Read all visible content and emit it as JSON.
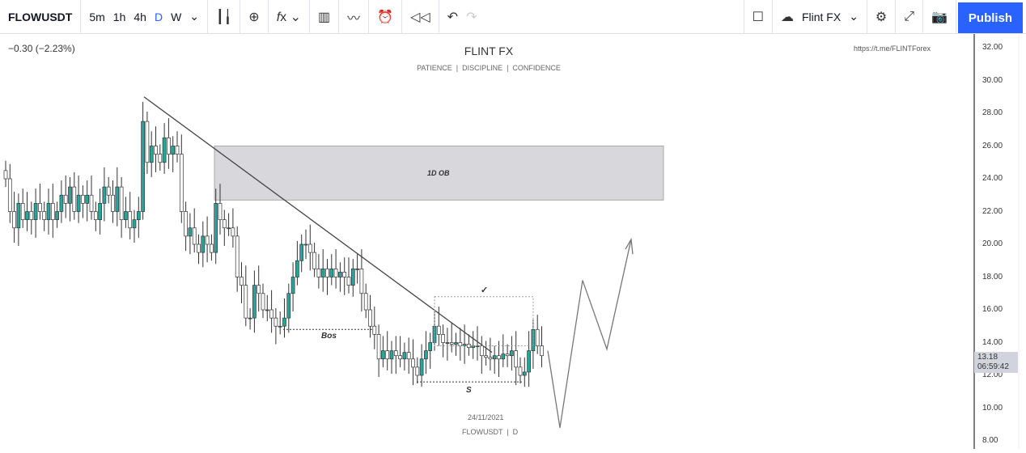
{
  "toolbar": {
    "symbol": "FLOWUSDT",
    "intervals": [
      "5m",
      "1h",
      "4h",
      "D",
      "W"
    ],
    "active_interval": "D",
    "layout_name": "Flint FX",
    "publish": "Publish"
  },
  "legend": {
    "change": "−0.30 (−2.23%)"
  },
  "watermark": {
    "title": "FLINT FX",
    "subtitle": "PATIENCE  |  DISCIPLINE  |  CONFIDENCE",
    "link": "https://t.me/FLINTForex",
    "date": "24/11/2021",
    "footer": "FLOWUSDT  |  D"
  },
  "annotations": {
    "ob": "1D OB",
    "bos": "Bos",
    "s": "S",
    "check": "✓"
  },
  "price_axis": {
    "ticks": [
      "32.00",
      "30.00",
      "28.00",
      "26.00",
      "24.00",
      "22.00",
      "20.00",
      "18.00",
      "16.00",
      "14.00",
      "12.00",
      "10.00",
      "8.00"
    ],
    "last_price": "13.18",
    "countdown": "06:59:42"
  },
  "colors": {
    "up": "#26a69a",
    "down": "#ffffff",
    "accent": "#2962ff"
  },
  "chart_data": {
    "type": "candlestick",
    "ylim": [
      8,
      32
    ],
    "close": [
      24,
      22,
      21,
      22.5,
      21.5,
      22,
      21.5,
      22.5,
      22,
      21.5,
      22.5,
      21.5,
      22,
      23,
      22.5,
      23.5,
      22,
      23,
      22.5,
      23,
      22,
      21.5,
      22.5,
      23.5,
      23,
      22,
      23.5,
      21.5,
      22,
      21,
      21.5,
      22,
      27.5,
      25,
      26,
      25.5,
      25,
      26.5,
      25.5,
      26,
      25.5,
      22,
      20.5,
      21,
      20,
      19.5,
      20.5,
      20,
      19.5,
      22.5,
      21.5,
      21,
      21,
      20.5,
      18,
      17.5,
      15.5,
      15.5,
      17.5,
      17,
      16,
      16,
      15.5,
      15,
      15,
      15.5,
      17,
      18,
      19,
      20,
      20,
      19.5,
      18.5,
      18,
      18.5,
      18,
      18.5,
      18,
      18.3,
      18,
      17.5,
      18.5,
      18.5,
      17,
      16,
      15,
      14.5,
      13,
      13.5,
      13,
      13.5,
      13.2,
      13,
      13.4,
      13,
      12.5,
      12,
      13,
      13.5,
      14,
      15,
      14.5,
      14,
      14,
      13.9,
      14,
      13.8,
      13.9,
      13.7,
      13.8,
      13.8,
      13.2,
      13.1,
      13,
      13.2,
      13,
      13.3,
      13.2,
      13.5,
      12.5,
      12,
      12.2,
      13.5,
      14.8,
      13.8,
      13.2
    ],
    "trendline": [
      [
        "2021-03",
        29
      ],
      [
        "2021-10",
        13.4
      ]
    ]
  }
}
